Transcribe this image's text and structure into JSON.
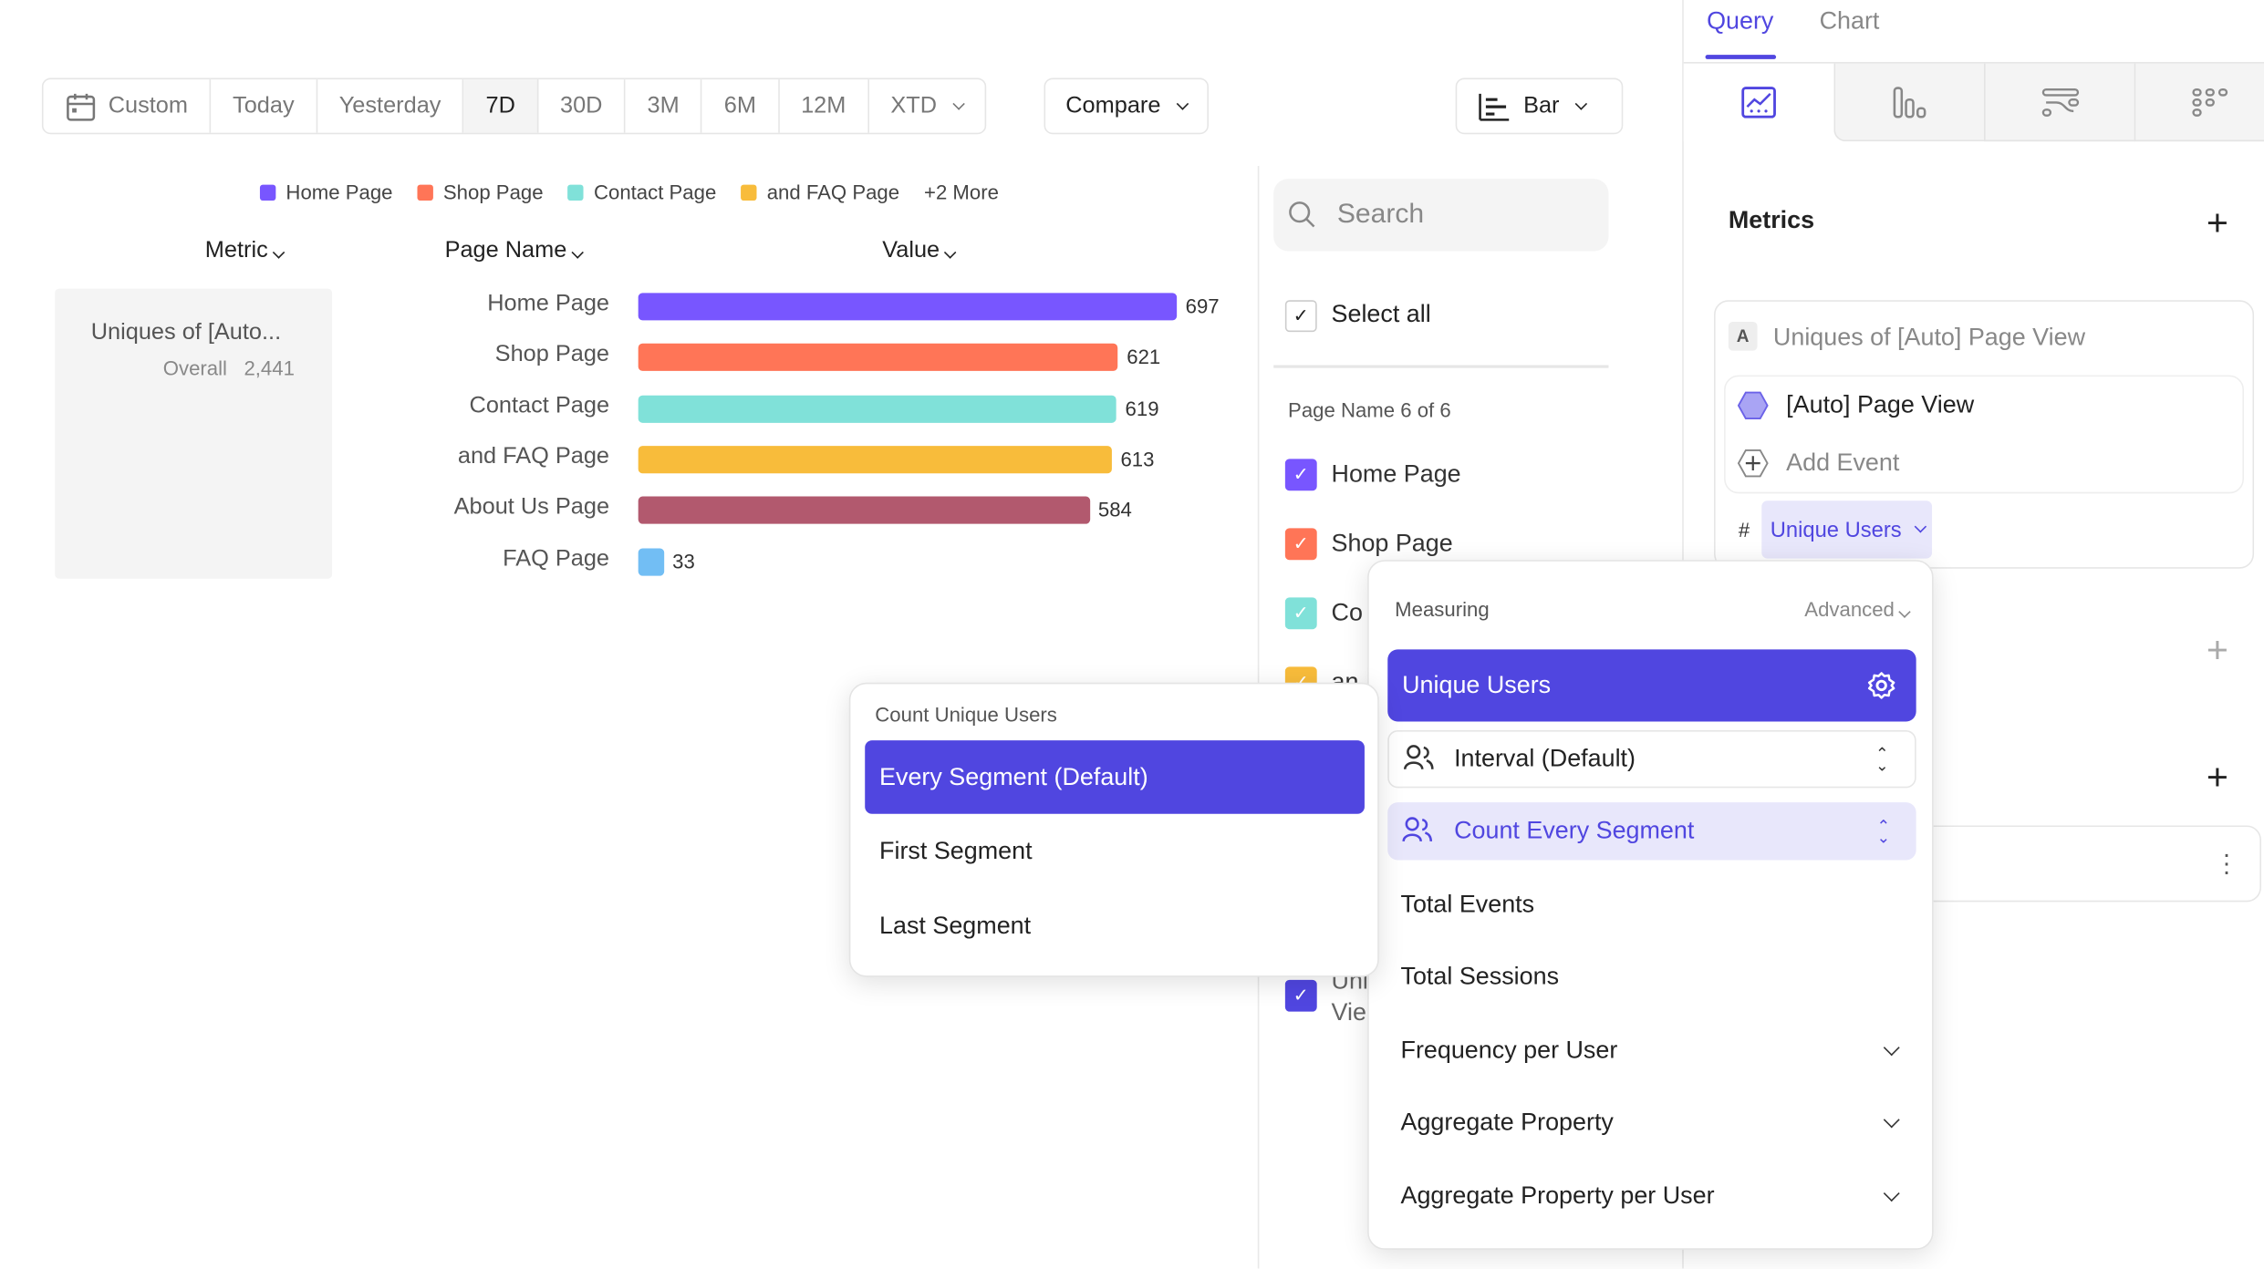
{
  "toolbar": {
    "ranges": [
      "Custom",
      "Today",
      "Yesterday",
      "7D",
      "30D",
      "3M",
      "6M",
      "12M",
      "XTD"
    ],
    "active": "7D",
    "compare": "Compare",
    "chart_type": "Bar"
  },
  "legend": {
    "items": [
      {
        "label": "Home Page",
        "color": "#7856ff"
      },
      {
        "label": "Shop Page",
        "color": "#ff7557"
      },
      {
        "label": "Contact Page",
        "color": "#80e1d9"
      },
      {
        "label": "and FAQ Page",
        "color": "#f8bc3b"
      }
    ],
    "more": "+2 More"
  },
  "table": {
    "headers": {
      "metric": "Metric",
      "page_name": "Page Name",
      "value": "Value"
    },
    "metric_name": "Uniques of [Auto...",
    "overall_label": "Overall",
    "overall_value": "2,441"
  },
  "chart_data": {
    "type": "bar",
    "orientation": "horizontal",
    "categories": [
      "Home Page",
      "Shop Page",
      "Contact Page",
      "and FAQ Page",
      "About Us Page",
      "FAQ Page"
    ],
    "values": [
      697,
      621,
      619,
      613,
      584,
      33
    ],
    "colors": [
      "#7856ff",
      "#ff7557",
      "#80e1d9",
      "#f8bc3b",
      "#b2596e",
      "#72bef4"
    ]
  },
  "filter": {
    "search_placeholder": "Search",
    "select_all": "Select all",
    "group_label": "Page Name 6 of 6",
    "items": [
      {
        "label": "Home Page",
        "color": "#7856ff"
      },
      {
        "label": "Shop Page",
        "color": "#ff7557"
      },
      {
        "label": "Co",
        "color": "#80e1d9"
      },
      {
        "label": "an",
        "color": "#f8bc3b"
      }
    ],
    "partial_item": [
      "Uni",
      "Vie"
    ],
    "partial_color": "#5046e0"
  },
  "panel": {
    "tabs": [
      "Query",
      "Chart"
    ],
    "active_tab": "Query",
    "metrics_title": "Metrics",
    "metric_letter": "A",
    "metric_title": "Uniques of [Auto] Page View",
    "event": "[Auto] Page View",
    "add_event": "Add Event",
    "hash": "#",
    "measure": "Unique Users"
  },
  "measuring": {
    "title": "Measuring",
    "advanced": "Advanced",
    "selected": "Unique Users",
    "interval": "Interval (Default)",
    "count": "Count Every Segment",
    "options": [
      "Total Events",
      "Total Sessions",
      "Frequency per User",
      "Aggregate Property",
      "Aggregate Property per User"
    ]
  },
  "count_popup": {
    "title": "Count Unique Users",
    "options": [
      "Every Segment (Default)",
      "First Segment",
      "Last Segment"
    ],
    "selected": "Every Segment (Default)"
  },
  "accent": "#5046e0"
}
